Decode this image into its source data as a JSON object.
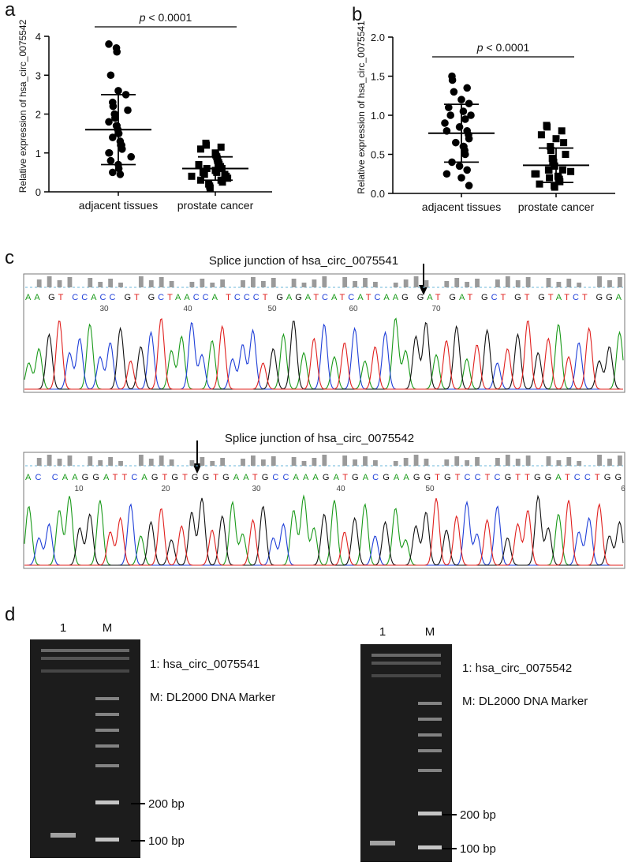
{
  "chart_data": [
    {
      "type": "dotplot",
      "panel": "a",
      "ylabel": "Relative expression of hsa_circ_0075542",
      "annotation_symbol": "p",
      "annotation": "< 0.0001",
      "ylim": [
        0,
        4
      ],
      "yticks": [
        0,
        1,
        2,
        3,
        4
      ],
      "categories": [
        "adjacent tissues",
        "prostate cancer"
      ],
      "groups": [
        {
          "marker": "circle",
          "mean": 1.6,
          "sd": 0.9,
          "values": [
            3.8,
            3.7,
            3.6,
            3.0,
            2.6,
            2.5,
            2.3,
            2.2,
            2.1,
            2.0,
            1.9,
            1.8,
            1.7,
            1.7,
            1.6,
            1.5,
            1.5,
            1.4,
            1.3,
            1.2,
            1.2,
            1.1,
            1.0,
            1.0,
            0.9,
            0.8,
            0.7,
            0.6,
            0.5,
            0.45
          ]
        },
        {
          "marker": "square",
          "mean": 0.6,
          "sd": 0.3,
          "values": [
            1.25,
            1.2,
            1.15,
            1.1,
            1.0,
            0.95,
            0.9,
            0.85,
            0.8,
            0.75,
            0.7,
            0.7,
            0.65,
            0.6,
            0.6,
            0.55,
            0.55,
            0.5,
            0.5,
            0.45,
            0.45,
            0.4,
            0.4,
            0.35,
            0.3,
            0.3,
            0.25,
            0.2,
            0.15,
            0.1
          ]
        }
      ]
    },
    {
      "type": "dotplot",
      "panel": "b",
      "ylabel": "Relative expression of hsa_circ_0075541",
      "annotation_symbol": "p",
      "annotation": "< 0.0001",
      "ylim": [
        0,
        2
      ],
      "yticks": [
        {
          "value": 0,
          "label": "0.0"
        },
        0.5,
        {
          "value": 1,
          "label": "1.0"
        },
        1.5,
        {
          "value": 2,
          "label": "2.0"
        }
      ],
      "categories": [
        "adjacent tissues",
        "prostate cancer"
      ],
      "groups": [
        {
          "marker": "circle",
          "mean": 0.77,
          "sd": 0.37,
          "values": [
            1.5,
            1.45,
            1.35,
            1.3,
            1.2,
            1.15,
            1.1,
            1.05,
            1.0,
            1.0,
            0.95,
            0.9,
            0.85,
            0.8,
            0.8,
            0.75,
            0.7,
            0.65,
            0.6,
            0.6,
            0.55,
            0.5,
            0.4,
            0.35,
            0.3,
            0.25,
            0.2,
            0.1
          ]
        },
        {
          "marker": "square",
          "mean": 0.36,
          "sd": 0.22,
          "values": [
            0.87,
            0.85,
            0.8,
            0.75,
            0.7,
            0.65,
            0.6,
            0.55,
            0.5,
            0.45,
            0.4,
            0.4,
            0.35,
            0.35,
            0.3,
            0.3,
            0.28,
            0.25,
            0.22,
            0.2,
            0.18,
            0.15,
            0.12,
            0.1,
            0.08,
            0.3,
            0.25,
            0.2
          ]
        }
      ]
    }
  ],
  "sequencing": {
    "panel": "c",
    "traces": [
      {
        "title": "Splice junction of hsa_circ_0075541",
        "sequence": "AA GT CCACC GT GCTAACCA TCCCT GAGATCATCATCAAG GAT GAT GCT GT GTATCT GGA",
        "positions": [
          "30",
          "40",
          "50",
          "60",
          "70"
        ]
      },
      {
        "title": "Splice junction of hsa_circ_0075542",
        "sequence": "AC CAAGGATTCAGTGTGGTGAATGCCAAAGATGACGAAGGTGTCCTCGTTGGATCCTGG",
        "positions": [
          "10",
          "20",
          "30",
          "40",
          "50",
          "6"
        ]
      }
    ]
  },
  "gels": {
    "panel": "d",
    "items": [
      {
        "lane1": "1",
        "laneM": "M",
        "legend1": "1: hsa_circ_0075541",
        "legendM": "M: DL2000 DNA Marker",
        "marker_high": "200 bp",
        "marker_low": "100 bp"
      },
      {
        "lane1": "1",
        "laneM": "M",
        "legend1": "1: hsa_circ_0075542",
        "legendM": "M: DL2000 DNA Marker",
        "marker_high": "200 bp",
        "marker_low": "100 bp"
      }
    ]
  }
}
